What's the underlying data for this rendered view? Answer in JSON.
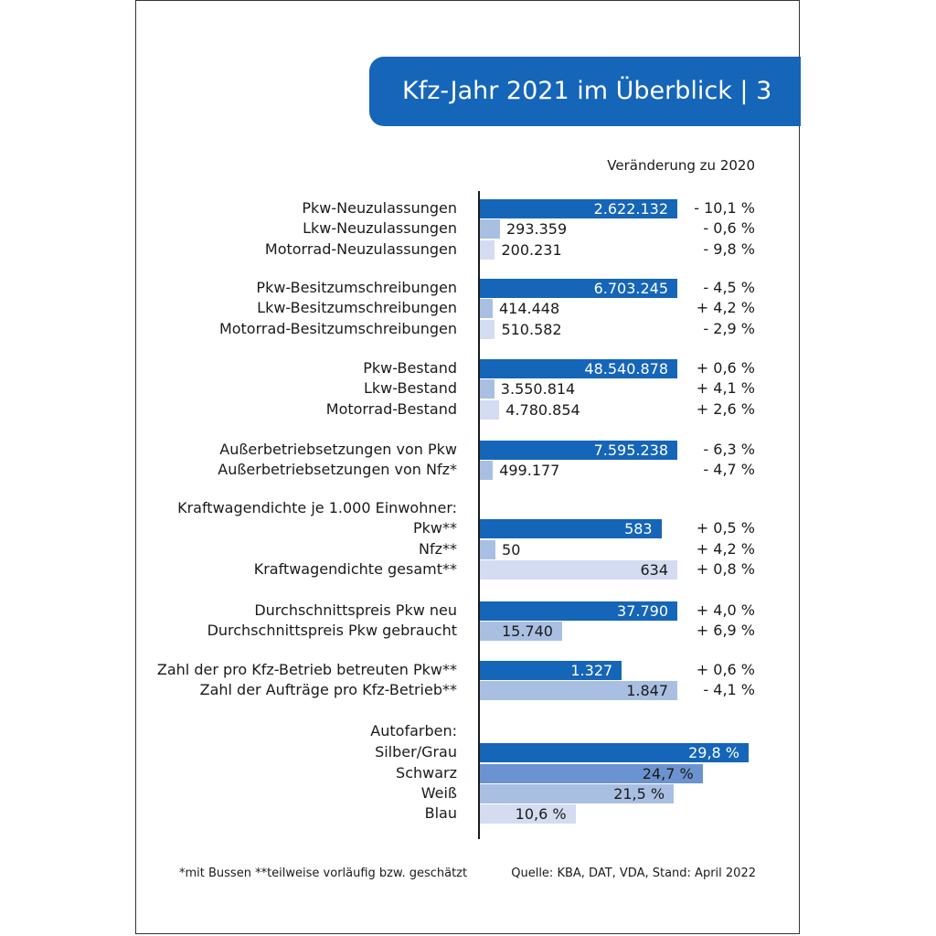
{
  "title": "Kfz-Jahr 2021 im Überblick | 3",
  "change_header": "Veränderung zu 2020",
  "colors": {
    "dark": "#1565b8",
    "medium": "#6b93cf",
    "light": "#a9bfe2",
    "pale": "#d3dcf0"
  },
  "footnote_left": "*mit Bussen **teilweise vorläufig bzw. geschätzt",
  "footnote_right": "Quelle: KBA, DAT, VDA, Stand: April 2022",
  "chart_data": {
    "type": "bar",
    "orientation": "horizontal",
    "groups": [
      {
        "heading": "",
        "rows": [
          {
            "label": "Pkw-Neuzulassungen",
            "value": 2622132,
            "value_label": "2.622.132",
            "change": "- 10,1 %",
            "shade": "dark"
          },
          {
            "label": "Lkw-Neuzulassungen",
            "value": 293359,
            "value_label": "293.359",
            "change": "- 0,6 %",
            "shade": "light"
          },
          {
            "label": "Motorrad-Neuzulassungen",
            "value": 200231,
            "value_label": "200.231",
            "change": "- 9,8 %",
            "shade": "pale"
          }
        ]
      },
      {
        "heading": "",
        "rows": [
          {
            "label": "Pkw-Besitzumschreibungen",
            "value": 6703245,
            "value_label": "6.703.245",
            "change": "- 4,5 %",
            "shade": "dark"
          },
          {
            "label": "Lkw-Besitzumschreibungen",
            "value": 414448,
            "value_label": "414.448",
            "change": "+ 4,2 %",
            "shade": "light"
          },
          {
            "label": "Motorrad-Besitzumschreibungen",
            "value": 510582,
            "value_label": "510.582",
            "change": "- 2,9 %",
            "shade": "pale"
          }
        ]
      },
      {
        "heading": "",
        "rows": [
          {
            "label": "Pkw-Bestand",
            "value": 48540878,
            "value_label": "48.540.878",
            "change": "+ 0,6 %",
            "shade": "dark"
          },
          {
            "label": "Lkw-Bestand",
            "value": 3550814,
            "value_label": "3.550.814",
            "change": "+ 4,1 %",
            "shade": "light"
          },
          {
            "label": "Motorrad-Bestand",
            "value": 4780854,
            "value_label": "4.780.854",
            "change": "+ 2,6 %",
            "shade": "pale"
          }
        ]
      },
      {
        "heading": "",
        "rows": [
          {
            "label": "Außerbetriebsetzungen von Pkw",
            "value": 7595238,
            "value_label": "7.595.238",
            "change": "- 6,3 %",
            "shade": "dark"
          },
          {
            "label": "Außerbetriebsetzungen von Nfz*",
            "value": 499177,
            "value_label": "499.177",
            "change": "- 4,7 %",
            "shade": "light"
          }
        ]
      },
      {
        "heading": "Kraftwagendichte je 1.000 Einwohner:",
        "rows": [
          {
            "label": "Pkw**",
            "value": 583,
            "value_label": "583",
            "change": "+ 0,5 %",
            "shade": "dark"
          },
          {
            "label": "Nfz**",
            "value": 50,
            "value_label": "50",
            "change": "+ 4,2 %",
            "shade": "light"
          },
          {
            "label": "Kraftwagendichte gesamt**",
            "value": 634,
            "value_label": "634",
            "change": "+ 0,8 %",
            "shade": "pale"
          }
        ]
      },
      {
        "heading": "",
        "rows": [
          {
            "label": "Durchschnittspreis Pkw neu",
            "value": 37790,
            "value_label": "37.790",
            "change": "+ 4,0 %",
            "shade": "dark"
          },
          {
            "label": "Durchschnittspreis Pkw gebraucht",
            "value": 15740,
            "value_label": "15.740",
            "change": "+ 6,9 %",
            "shade": "light"
          }
        ]
      },
      {
        "heading": "",
        "rows": [
          {
            "label": "Zahl der pro Kfz-Betrieb betreuten Pkw**",
            "value": 1327,
            "value_label": "1.327",
            "change": "+ 0,6 %",
            "shade": "dark"
          },
          {
            "label": "Zahl der Aufträge pro Kfz-Betrieb**",
            "value": 1847,
            "value_label": "1.847",
            "change": "- 4,1 %",
            "shade": "light"
          }
        ]
      },
      {
        "heading": "Autofarben:",
        "rows": [
          {
            "label": "Silber/Grau",
            "value": 29.8,
            "value_label": "29,8 %",
            "change": "",
            "shade": "dark"
          },
          {
            "label": "Schwarz",
            "value": 24.7,
            "value_label": "24,7 %",
            "change": "",
            "shade": "medium"
          },
          {
            "label": "Weiß",
            "value": 21.5,
            "value_label": "21,5 %",
            "change": "",
            "shade": "light"
          },
          {
            "label": "Blau",
            "value": 10.6,
            "value_label": "10,6 %",
            "change": "",
            "shade": "pale"
          }
        ]
      }
    ]
  }
}
